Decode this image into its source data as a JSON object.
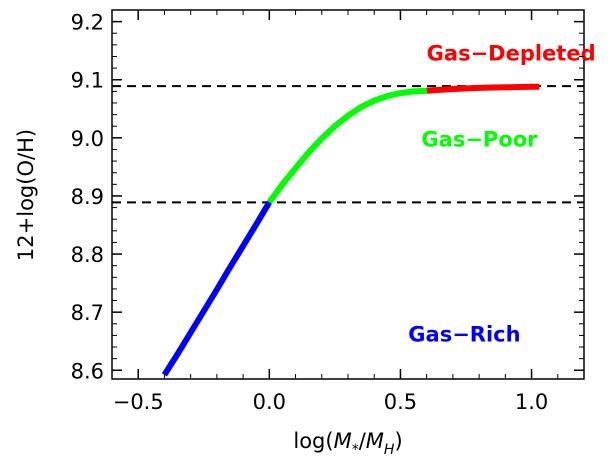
{
  "chart_data": {
    "type": "line",
    "title": "",
    "xlabel": "log(M*/MH)",
    "ylabel": "12+log(O/H)",
    "xlim": [
      -0.6,
      1.2
    ],
    "ylim": [
      8.585,
      9.22
    ],
    "x_ticks": [
      "−0.5",
      "0.0",
      "0.5",
      "1.0"
    ],
    "x_tick_values": [
      -0.5,
      0.0,
      0.5,
      1.0
    ],
    "y_ticks": [
      "8.6",
      "8.7",
      "8.8",
      "8.9",
      "9.0",
      "9.1",
      "9.2"
    ],
    "y_tick_values": [
      8.6,
      8.7,
      8.8,
      8.9,
      9.0,
      9.1,
      9.2
    ],
    "grid": false,
    "hlines": [
      8.889,
      9.089
    ],
    "series": [
      {
        "color": "#0000ff",
        "x": [
          -0.4,
          -0.35,
          -0.3,
          -0.25,
          -0.2,
          -0.15,
          -0.1,
          -0.05,
          0.0
        ],
        "y": [
          8.592,
          8.628,
          8.665,
          8.702,
          8.739,
          8.777,
          8.814,
          8.851,
          8.889
        ]
      },
      {
        "color": "#00ff00",
        "x": [
          0.0,
          0.05,
          0.1,
          0.15,
          0.2,
          0.25,
          0.3,
          0.35,
          0.4,
          0.45,
          0.5,
          0.55,
          0.6
        ],
        "y": [
          8.889,
          8.92,
          8.948,
          8.975,
          8.999,
          9.02,
          9.038,
          9.053,
          9.064,
          9.072,
          9.077,
          9.08,
          9.081
        ]
      },
      {
        "color": "#ff0000",
        "x": [
          0.6,
          0.7,
          0.8,
          0.9,
          1.0,
          1.03
        ],
        "y": [
          9.081,
          9.084,
          9.086,
          9.087,
          9.088,
          9.088
        ]
      }
    ],
    "annotations": [
      {
        "text": "Gas−Depleted",
        "x": 0.6,
        "y": 9.145,
        "color": "#ff0000"
      },
      {
        "text": "Gas−Poor",
        "x": 0.58,
        "y": 8.997,
        "color": "#00ff00"
      },
      {
        "text": "Gas−Rich",
        "x": 0.53,
        "y": 8.662,
        "color": "#0000ff"
      }
    ]
  }
}
